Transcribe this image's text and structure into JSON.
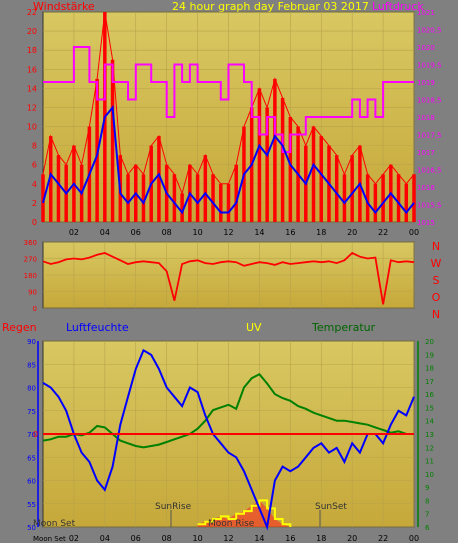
{
  "title": "24 hour graph day   Februar 03 2017",
  "colors": {
    "panel_bg": "#808080",
    "plot_top": "#d6c45e",
    "plot_bottom": "#c8ad3e",
    "wind_avg": "#0000ff",
    "wind_gust": "#ff0000",
    "pressure": "#ff00ff",
    "direction": "#ff0000",
    "humidity": "#0000ff",
    "temperature": "#008000",
    "uv": "#ffff00",
    "rain_zero": "#ff0000"
  },
  "labels": {
    "windstaerke": "Windstärke",
    "luftdruck": "Luftdruck",
    "regen": "Regen",
    "luftfeuchte": "Luftfeuchte",
    "uv": "UV",
    "temperatur": "Temperatur",
    "sunrise": "SunRise",
    "sunset": "SunSet",
    "moonset": "Moon Set",
    "moonrise": "Moon Rise",
    "moonset_axis": "Moon Set"
  },
  "chart_data": [
    {
      "type": "line",
      "name": "wind-and-pressure",
      "x_ticks": [
        "02",
        "04",
        "06",
        "08",
        "10",
        "12",
        "14",
        "16",
        "18",
        "20",
        "22",
        "00"
      ],
      "y_left": {
        "label": "Windstärke",
        "range": [
          0,
          22
        ],
        "ticks": [
          "0",
          "2",
          "4",
          "6",
          "8",
          "10",
          "12",
          "14",
          "16",
          "18",
          "20",
          "22"
        ]
      },
      "y_right": {
        "label": "Luftdruck",
        "range": [
          1015,
          1021
        ],
        "ticks": [
          "1015",
          "1015,5",
          "1016",
          "1016,5",
          "1017",
          "1017,5",
          "1018",
          "1018,5",
          "1019",
          "1019,5",
          "1020",
          "1020,5",
          "1021"
        ]
      },
      "series": [
        {
          "role": "wind_avg",
          "axis": "left",
          "x": [
            0,
            0.5,
            1,
            1.5,
            2,
            2.5,
            3,
            3.5,
            4,
            4.5,
            5,
            5.5,
            6,
            6.5,
            7,
            7.5,
            8,
            8.5,
            9,
            9.5,
            10,
            10.5,
            11,
            11.5,
            12,
            12.5,
            13,
            13.5,
            14,
            14.5,
            15,
            15.5,
            16,
            16.5,
            17,
            17.5,
            18,
            18.5,
            19,
            19.5,
            20,
            20.5,
            21,
            21.5,
            22,
            22.5,
            23,
            23.5,
            24
          ],
          "values": [
            2,
            5,
            4,
            3,
            4,
            3,
            5,
            7,
            11,
            12,
            3,
            2,
            3,
            2,
            4,
            5,
            3,
            2,
            1,
            3,
            2,
            3,
            2,
            1,
            1,
            2,
            5,
            6,
            8,
            7,
            9,
            8,
            6,
            5,
            4,
            6,
            5,
            4,
            3,
            2,
            3,
            4,
            2,
            1,
            2,
            3,
            2,
            1,
            2
          ]
        },
        {
          "role": "wind_gust",
          "axis": "left",
          "x": [
            0,
            0.5,
            1,
            1.5,
            2,
            2.5,
            3,
            3.5,
            4,
            4.5,
            5,
            5.5,
            6,
            6.5,
            7,
            7.5,
            8,
            8.5,
            9,
            9.5,
            10,
            10.5,
            11,
            11.5,
            12,
            12.5,
            13,
            13.5,
            14,
            14.5,
            15,
            15.5,
            16,
            16.5,
            17,
            17.5,
            18,
            18.5,
            19,
            19.5,
            20,
            20.5,
            21,
            21.5,
            22,
            22.5,
            23,
            23.5,
            24
          ],
          "values": [
            5,
            9,
            7,
            6,
            8,
            6,
            10,
            15,
            22,
            17,
            7,
            5,
            6,
            5,
            8,
            9,
            6,
            5,
            3,
            6,
            5,
            7,
            5,
            4,
            4,
            6,
            10,
            12,
            14,
            12,
            15,
            13,
            11,
            10,
            8,
            10,
            9,
            8,
            7,
            5,
            7,
            8,
            5,
            4,
            5,
            6,
            5,
            4,
            5
          ]
        },
        {
          "role": "pressure",
          "axis": "right",
          "x": [
            0,
            1,
            1.5,
            2,
            2.5,
            3,
            3.5,
            4,
            4.5,
            5,
            5.5,
            6,
            6.5,
            7,
            7.5,
            8,
            8.5,
            9,
            9.5,
            10,
            10.5,
            11,
            11.5,
            12,
            12.5,
            13,
            13.5,
            14,
            14.5,
            15,
            15.5,
            16,
            16.5,
            17,
            17.5,
            18,
            18.5,
            19,
            19.5,
            20,
            20.5,
            21,
            21.5,
            22,
            22.5,
            23,
            23.5,
            24
          ],
          "values": [
            1019,
            1019,
            1019,
            1020,
            1020,
            1019,
            1018.5,
            1019.5,
            1019,
            1019,
            1018.5,
            1019.5,
            1019.5,
            1019,
            1019,
            1018,
            1019.5,
            1019,
            1019.5,
            1019,
            1019,
            1019,
            1018.5,
            1019.5,
            1019.5,
            1019,
            1018,
            1017.5,
            1018,
            1017.5,
            1017,
            1017.5,
            1017.5,
            1018,
            1018,
            1018,
            1018,
            1018,
            1018,
            1018.5,
            1018,
            1018.5,
            1018,
            1019,
            1019,
            1019,
            1019,
            1019
          ]
        }
      ]
    },
    {
      "type": "line",
      "name": "wind-direction",
      "x_ticks": [
        "02",
        "04",
        "06",
        "08",
        "10",
        "12",
        "14",
        "16",
        "18",
        "20",
        "22",
        "00"
      ],
      "y_left": {
        "range": [
          0,
          360
        ],
        "ticks": [
          "0",
          "90",
          "180",
          "270",
          "360"
        ]
      },
      "y_right_labels": [
        "N",
        "W",
        "S",
        "O",
        "N"
      ],
      "series": [
        {
          "role": "direction",
          "x": [
            0,
            0.5,
            1,
            1.5,
            2,
            2.5,
            3,
            3.5,
            4,
            4.5,
            5,
            5.5,
            6,
            6.5,
            7,
            7.5,
            8,
            8.5,
            9,
            9.5,
            10,
            10.5,
            11,
            11.5,
            12,
            12.5,
            13,
            13.5,
            14,
            14.5,
            15,
            15.5,
            16,
            16.5,
            17,
            17.5,
            18,
            18.5,
            19,
            19.5,
            20,
            20.5,
            21,
            21.5,
            22,
            22.5,
            23,
            23.5,
            24
          ],
          "values": [
            255,
            240,
            250,
            265,
            270,
            265,
            275,
            290,
            300,
            280,
            260,
            240,
            250,
            255,
            250,
            245,
            200,
            40,
            240,
            255,
            260,
            245,
            240,
            250,
            255,
            250,
            230,
            240,
            250,
            245,
            235,
            250,
            240,
            245,
            250,
            255,
            250,
            255,
            245,
            260,
            300,
            280,
            270,
            275,
            20,
            260,
            250,
            255,
            250
          ]
        }
      ]
    },
    {
      "type": "line",
      "name": "rain-humidity-uv-temperature",
      "x_ticks": [
        "02",
        "04",
        "06",
        "08",
        "10",
        "12",
        "14",
        "16",
        "18",
        "20",
        "22",
        "00"
      ],
      "x_first_label": "Moon Set",
      "y_left": {
        "label": "Luftfeuchte",
        "range": [
          50,
          90
        ],
        "ticks": [
          "50",
          "55",
          "60",
          "65",
          "70",
          "75",
          "80",
          "85",
          "90"
        ]
      },
      "y_rain": {
        "label": "Regen",
        "ticks": [
          "0"
        ]
      },
      "y_right": {
        "label": "Temperatur",
        "range": [
          6,
          20
        ],
        "ticks": [
          "6",
          "7",
          "8",
          "9",
          "10",
          "11",
          "12",
          "13",
          "14",
          "15",
          "16",
          "17",
          "18",
          "19",
          "20"
        ]
      },
      "series": [
        {
          "role": "humidity",
          "axis": "left",
          "x": [
            0,
            0.5,
            1,
            1.5,
            2,
            2.5,
            3,
            3.5,
            4,
            4.5,
            5,
            5.5,
            6,
            6.5,
            7,
            7.5,
            8,
            8.5,
            9,
            9.5,
            10,
            10.5,
            11,
            11.5,
            12,
            12.5,
            13,
            13.5,
            14,
            14.5,
            15,
            15.5,
            16,
            16.5,
            17,
            17.5,
            18,
            18.5,
            19,
            19.5,
            20,
            20.5,
            21,
            21.5,
            22,
            22.5,
            23,
            23.5,
            24
          ],
          "values": [
            81,
            80,
            78,
            75,
            70,
            66,
            64,
            60,
            58,
            63,
            72,
            78,
            84,
            88,
            87,
            84,
            80,
            78,
            76,
            80,
            79,
            74,
            70,
            68,
            66,
            65,
            62,
            58,
            54,
            50,
            60,
            63,
            62,
            63,
            65,
            67,
            68,
            66,
            67,
            64,
            68,
            66,
            70,
            70,
            68,
            72,
            75,
            74,
            78
          ]
        },
        {
          "role": "temperature",
          "axis": "right",
          "x": [
            0,
            0.5,
            1,
            1.5,
            2,
            2.5,
            3,
            3.5,
            4,
            4.5,
            5,
            5.5,
            6,
            6.5,
            7,
            7.5,
            8,
            8.5,
            9,
            9.5,
            10,
            10.5,
            11,
            11.5,
            12,
            12.5,
            13,
            13.5,
            14,
            14.5,
            15,
            15.5,
            16,
            16.5,
            17,
            17.5,
            18,
            18.5,
            19,
            19.5,
            20,
            20.5,
            21,
            21.5,
            22,
            22.5,
            23,
            23.5,
            24
          ],
          "values": [
            12.5,
            12.6,
            12.8,
            12.8,
            13,
            12.9,
            13.1,
            13.6,
            13.5,
            13,
            12.5,
            12.3,
            12.1,
            12,
            12.1,
            12.2,
            12.4,
            12.6,
            12.8,
            13,
            13.4,
            14,
            14.8,
            15,
            15.2,
            14.9,
            16.5,
            17.2,
            17.5,
            16.8,
            16,
            15.7,
            15.5,
            15.1,
            14.9,
            14.6,
            14.4,
            14.2,
            14,
            14,
            13.9,
            13.8,
            13.7,
            13.5,
            13.3,
            13.1,
            13.2,
            13,
            13
          ]
        },
        {
          "role": "uv",
          "axis": "right",
          "x": [
            10,
            10.5,
            11,
            11.5,
            12,
            12.5,
            13,
            13.5,
            14,
            14.5,
            15,
            15.5,
            16
          ],
          "values": [
            6.2,
            6.4,
            6.6,
            6.8,
            6.6,
            7,
            7.2,
            7.6,
            8,
            7.4,
            6.6,
            6.2,
            6
          ]
        }
      ],
      "annotations": [
        "SunRise",
        "SunSet",
        "Moon Set",
        "Moon Rise"
      ]
    }
  ]
}
